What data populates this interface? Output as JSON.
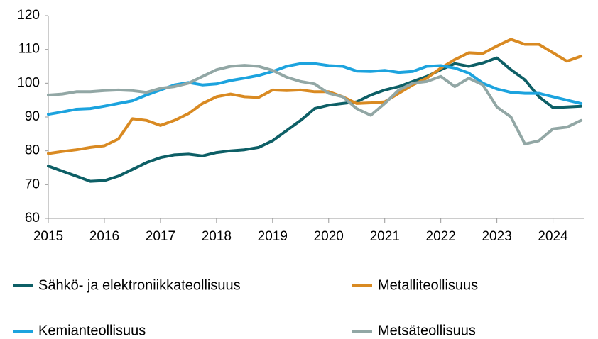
{
  "chart_data": {
    "type": "line",
    "x": [
      2015,
      2015.25,
      2015.5,
      2015.75,
      2016,
      2016.25,
      2016.5,
      2016.75,
      2017,
      2017.25,
      2017.5,
      2017.75,
      2018,
      2018.25,
      2018.5,
      2018.75,
      2019,
      2019.25,
      2019.5,
      2019.75,
      2020,
      2020.25,
      2020.5,
      2020.75,
      2021,
      2021.25,
      2021.5,
      2021.75,
      2022,
      2022.25,
      2022.5,
      2022.75,
      2023,
      2023.25,
      2023.5,
      2023.75,
      2024,
      2024.25,
      2024.5
    ],
    "series": [
      {
        "name": "Sähkö- ja elektroniikkateollisuus",
        "color": "#0d5f66",
        "values": [
          75.5,
          74,
          72.5,
          71,
          71.2,
          72.5,
          74.5,
          76.5,
          78,
          78.8,
          79,
          78.5,
          79.5,
          80,
          80.3,
          81,
          83,
          86,
          89,
          92.5,
          93.5,
          94,
          94.5,
          96.5,
          98,
          99,
          100.5,
          102,
          104,
          105.8,
          105,
          106,
          107.5,
          104,
          101,
          96,
          92.8,
          93,
          93.2
        ]
      },
      {
        "name": "Metalliteollisuus",
        "color": "#d98a22",
        "values": [
          79.2,
          79.8,
          80.3,
          81,
          81.5,
          83.5,
          89.5,
          89,
          87.5,
          89,
          91,
          94,
          96,
          96.8,
          96,
          95.8,
          98,
          97.8,
          98,
          97.5,
          97.5,
          96,
          94,
          94.2,
          94.5,
          97,
          99.5,
          101.5,
          104.5,
          107,
          109,
          108.8,
          111,
          113,
          111.5,
          111.5,
          109,
          106.5,
          108
        ]
      },
      {
        "name": "Kemianteollisuus",
        "color": "#1ca3de",
        "values": [
          90.8,
          91.5,
          92.3,
          92.5,
          93.2,
          94,
          94.8,
          96.5,
          98,
          99.5,
          100.2,
          99.5,
          99.8,
          100.8,
          101.5,
          102.3,
          103.5,
          105,
          105.8,
          105.8,
          105.2,
          105,
          103.6,
          103.5,
          103.8,
          103.2,
          103.5,
          105,
          105.2,
          104.5,
          103,
          100,
          98.3,
          97.3,
          97,
          97,
          96,
          95,
          94
        ]
      },
      {
        "name": "Metsäteollisuus",
        "color": "#92a7a5",
        "values": [
          96.5,
          96.8,
          97.5,
          97.5,
          97.8,
          98,
          97.8,
          97.3,
          98.5,
          99,
          100,
          102,
          104,
          105,
          105.3,
          105,
          103.8,
          101.8,
          100.5,
          99.8,
          97,
          96,
          92.5,
          90.5,
          94,
          98,
          100,
          100.5,
          102,
          99,
          101.5,
          99.5,
          93,
          90,
          82,
          83,
          86.5,
          87,
          89
        ]
      }
    ],
    "xlim": [
      2015,
      2024.55
    ],
    "xticks": [
      2015,
      2016,
      2017,
      2018,
      2019,
      2020,
      2021,
      2022,
      2023,
      2024
    ],
    "ylim": [
      60,
      120
    ],
    "yticks": [
      60,
      70,
      80,
      90,
      100,
      110,
      120
    ],
    "grid": false
  }
}
